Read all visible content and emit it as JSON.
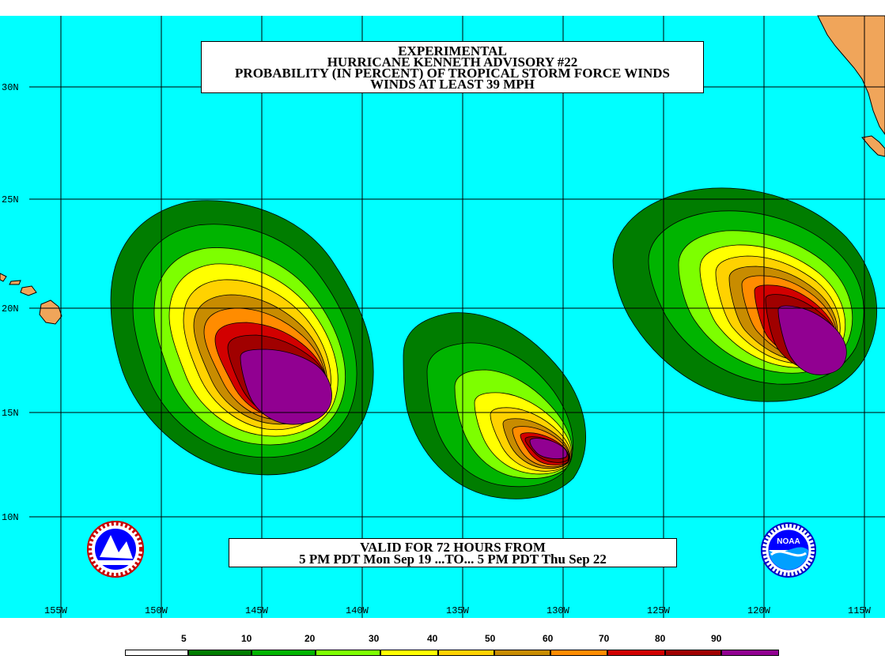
{
  "title": {
    "line1": "EXPERIMENTAL",
    "line2": "HURRICANE KENNETH ADVISORY #22",
    "line3": "PROBABILITY (IN PERCENT) OF TROPICAL STORM FORCE WINDS",
    "line4": "WINDS AT LEAST 39 MPH"
  },
  "valid": {
    "line1": "VALID FOR 72 HOURS FROM",
    "line2": "5 PM PDT Mon Sep 19 ...TO... 5 PM PDT Thu Sep 22"
  },
  "latitude_labels": [
    "30N",
    "25N",
    "20N",
    "15N",
    "10N"
  ],
  "longitude_labels": [
    "155W",
    "150W",
    "145W",
    "140W",
    "135W",
    "130W",
    "125W",
    "120W",
    "115W"
  ],
  "legend": {
    "labels": [
      "5",
      "10",
      "20",
      "30",
      "40",
      "50",
      "60",
      "70",
      "80",
      "90"
    ],
    "colors": [
      "#ffffff",
      "#007d00",
      "#00b400",
      "#7dff00",
      "#ffff00",
      "#ffd200",
      "#c88c00",
      "#ff8c00",
      "#d20000",
      "#a00000",
      "#910091"
    ]
  },
  "colors": {
    "ocean": "#00ffff",
    "land": "#f0a55a",
    "grid": "#000000"
  },
  "logos": {
    "left": "nws-logo",
    "right": "noaa-logo",
    "right_text": "NOAA"
  }
}
